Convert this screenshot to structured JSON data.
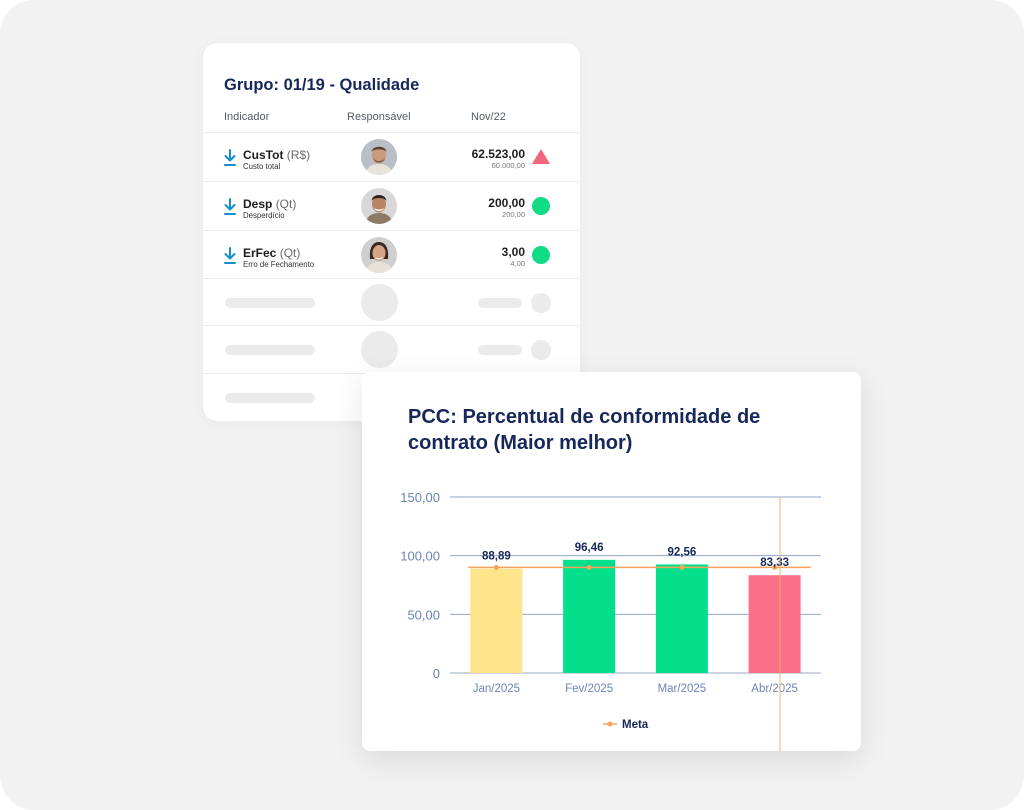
{
  "group_card": {
    "title": "Grupo: 01/19 - Qualidade",
    "headers": {
      "indicator": "Indicador",
      "owner": "Responsável",
      "period": "Nov/22"
    },
    "rows": [
      {
        "code": "CusTot",
        "unit": "(R$)",
        "desc": "Custo total",
        "value": "62.523,00",
        "target": "60.000,00",
        "status": "above-target",
        "status_color": "#f3647d"
      },
      {
        "code": "Desp",
        "unit": "(Qt)",
        "desc": "Desperdício",
        "value": "200,00",
        "target": "200,00",
        "status": "on-target",
        "status_color": "#0fdc84"
      },
      {
        "code": "ErFec",
        "unit": "(Qt)",
        "desc": "Erro de Fechamento",
        "value": "3,00",
        "target": "4,00",
        "status": "on-target",
        "status_color": "#0fdc84"
      }
    ]
  },
  "chart_card": {
    "title": "PCC: Percentual de conformidade de contrato (Maior melhor)"
  },
  "chart_data": {
    "type": "bar",
    "title": "PCC: Percentual de conformidade de contrato (Maior melhor)",
    "categories": [
      "Jan/2025",
      "Fev/2025",
      "Mar/2025",
      "Abr/2025"
    ],
    "values": [
      88.89,
      96.46,
      92.56,
      83.33
    ],
    "value_labels": [
      "88,89",
      "96,46",
      "92,56",
      "83,33"
    ],
    "bar_colors": [
      "#fde38a",
      "#04df8c",
      "#04df8c",
      "#fb6f88"
    ],
    "yticks": [
      0,
      50,
      100,
      150
    ],
    "ytick_labels": [
      "0",
      "50,00",
      "100,00",
      "150,00"
    ],
    "ylim": [
      0,
      150
    ],
    "grid": true,
    "series": [
      {
        "name": "Meta",
        "type": "line",
        "values": [
          90,
          90,
          90,
          90
        ],
        "color": "#f7a35c"
      }
    ],
    "legend": {
      "position": "bottom",
      "items": [
        "Meta"
      ]
    }
  }
}
